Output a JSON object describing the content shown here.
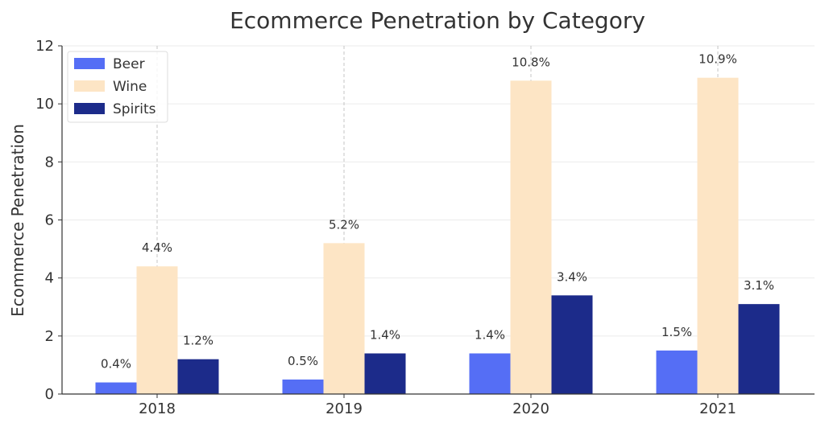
{
  "chart_data": {
    "type": "bar",
    "title": "Ecommerce Penetration by Category",
    "xlabel": "",
    "ylabel": "Ecommerce Penetration",
    "categories": [
      "2018",
      "2019",
      "2020",
      "2021"
    ],
    "ylim": [
      0,
      12
    ],
    "yticks": [
      0,
      2,
      4,
      6,
      8,
      10,
      12
    ],
    "ytick_labels": [
      "0",
      "2",
      "4",
      "6",
      "8",
      "10",
      "12"
    ],
    "grid": true,
    "legend_position": "top-left",
    "series": [
      {
        "name": "Beer",
        "values": [
          0.4,
          0.5,
          1.4,
          1.5
        ],
        "labels": [
          "0.4%",
          "0.5%",
          "1.4%",
          "1.5%"
        ],
        "color": "#556ef5"
      },
      {
        "name": "Wine",
        "values": [
          4.4,
          5.2,
          10.8,
          10.9
        ],
        "labels": [
          "4.4%",
          "5.2%",
          "10.8%",
          "10.9%"
        ],
        "color": "#fde5c5"
      },
      {
        "name": "Spirits",
        "values": [
          1.2,
          1.4,
          3.4,
          3.1
        ],
        "labels": [
          "1.2%",
          "1.4%",
          "3.4%",
          "3.1%"
        ],
        "color": "#1c2b8a"
      }
    ]
  }
}
